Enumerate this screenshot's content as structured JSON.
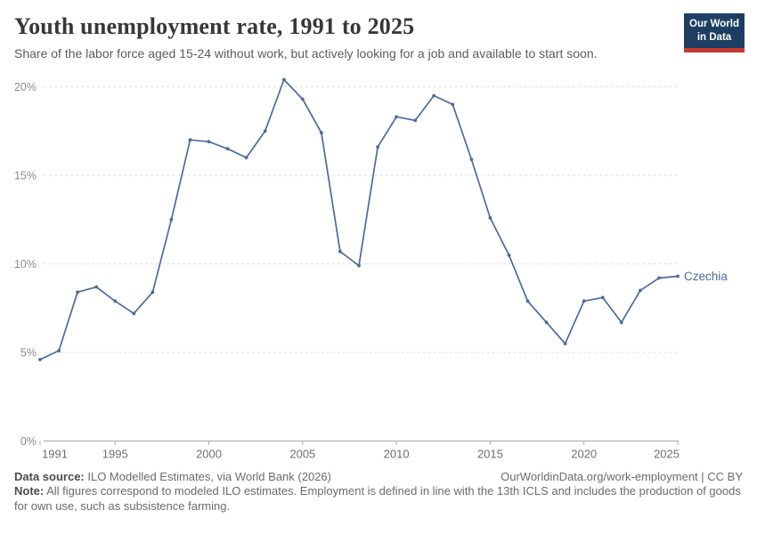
{
  "header": {
    "title": "Youth unemployment rate, 1991 to 2025",
    "subtitle": "Share of the labor force aged 15-24 without work, but actively looking for a job and available to start soon.",
    "logo": {
      "line1": "Our World",
      "line2": "in Data",
      "bg_color": "#1d3d63",
      "accent_color": "#c43a31"
    }
  },
  "chart_data": {
    "type": "line",
    "title": "Youth unemployment rate, 1991 to 2025",
    "xlabel": "",
    "ylabel": "",
    "x": [
      1991,
      1992,
      1993,
      1994,
      1995,
      1996,
      1997,
      1998,
      1999,
      2000,
      2001,
      2002,
      2003,
      2004,
      2005,
      2006,
      2007,
      2008,
      2009,
      2010,
      2011,
      2012,
      2013,
      2014,
      2015,
      2016,
      2017,
      2018,
      2019,
      2020,
      2021,
      2022,
      2023,
      2024,
      2025
    ],
    "series": [
      {
        "name": "Czechia",
        "color": "#4c6a9c",
        "values": [
          4.6,
          5.1,
          8.4,
          8.7,
          7.9,
          7.2,
          8.4,
          12.5,
          17.0,
          16.9,
          16.5,
          16.0,
          17.5,
          20.4,
          19.3,
          17.4,
          10.7,
          9.9,
          16.6,
          18.3,
          18.1,
          19.5,
          19.0,
          15.9,
          12.6,
          10.5,
          7.9,
          6.7,
          5.5,
          7.9,
          8.1,
          6.7,
          8.5,
          9.2,
          9.3
        ]
      }
    ],
    "xticks": [
      1991,
      1995,
      2000,
      2005,
      2010,
      2015,
      2020,
      2025
    ],
    "yticks": [
      0,
      5,
      10,
      15,
      20
    ],
    "ytick_suffix": "%",
    "xlim": [
      1991,
      2025
    ],
    "ylim": [
      0,
      20.5
    ],
    "grid": "horizontal-dashed",
    "legend_position": "end-of-line"
  },
  "footer": {
    "datasource_label": "Data source:",
    "datasource_value": " ILO Modelled Estimates, via World Bank (2026)",
    "link": "OurWorldinData.org/work-employment | CC BY",
    "note_label": "Note:",
    "note_value": " All figures correspond to modeled ILO estimates. Employment is defined in line with the 13th ICLS and includes the production of goods for own use, such as subsistence farming."
  }
}
